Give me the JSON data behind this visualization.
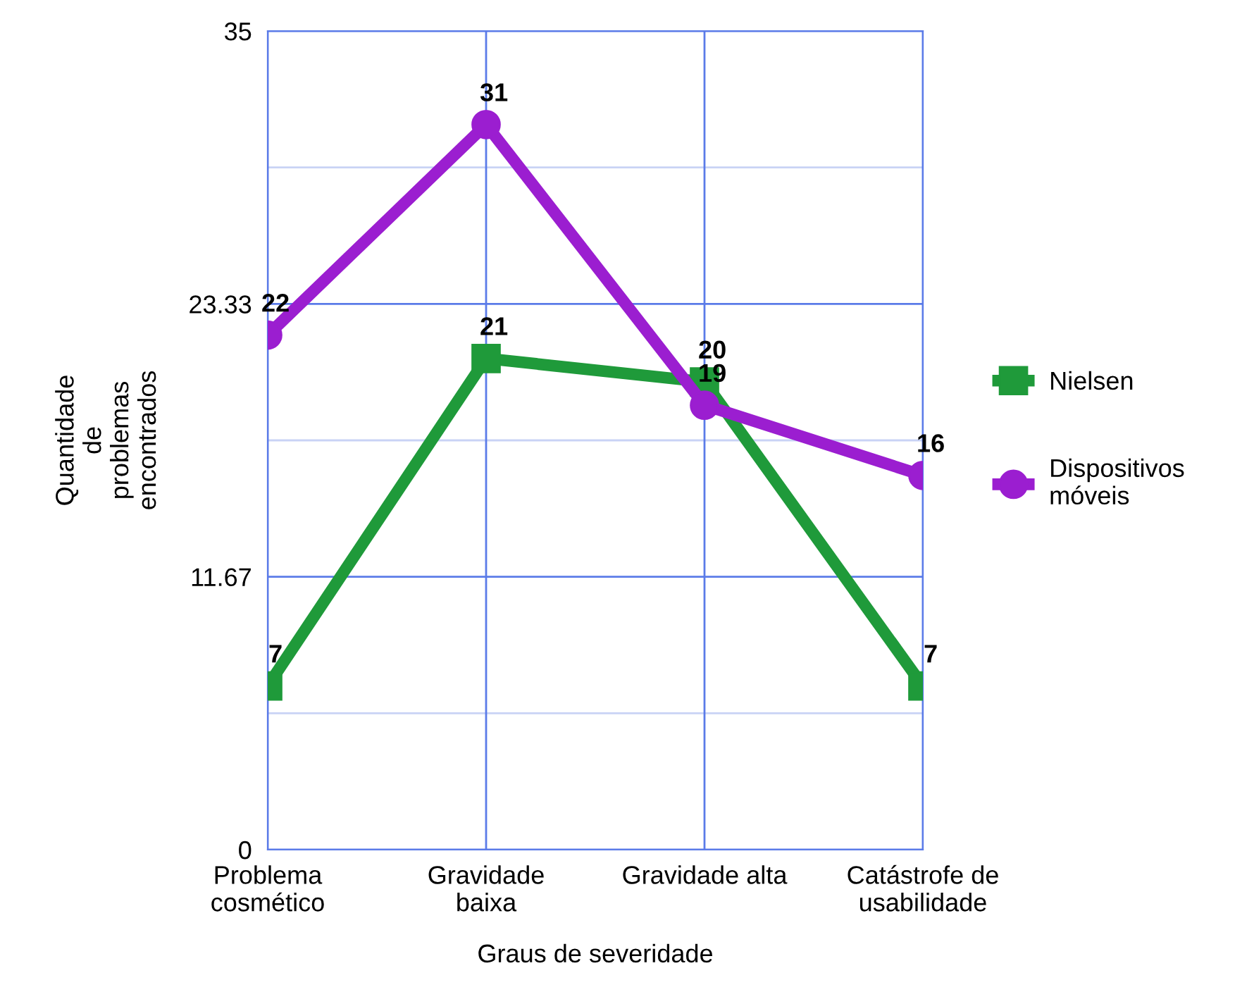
{
  "chart_data": {
    "type": "line",
    "xlabel": "Graus de severidade",
    "ylabel": "Quantidade\nde\nproblemas\nencontrados",
    "categories": [
      "Problema\ncosmético",
      "Gravidade\nbaixa",
      "Gravidade alta",
      "Catástrofe de\nusabilidade"
    ],
    "series": [
      {
        "name": "Nielsen",
        "color": "#1f9a3a",
        "values": [
          7,
          21,
          20,
          7
        ],
        "marker": "square"
      },
      {
        "name": "Dispositivos\nmóveis",
        "color": "#9b1ed0",
        "values": [
          22,
          31,
          19,
          16
        ],
        "marker": "circle"
      }
    ],
    "ylim": [
      0,
      35
    ],
    "yticks": [
      0,
      {
        "value": 5.83,
        "label": null
      },
      {
        "value": 11.67,
        "label": "11.67"
      },
      {
        "value": 17.5,
        "label": null
      },
      {
        "value": 23.33,
        "label": "23.33"
      },
      {
        "value": 29.17,
        "label": null
      },
      35
    ],
    "grid": true,
    "legend": "right",
    "data_labels": true
  }
}
